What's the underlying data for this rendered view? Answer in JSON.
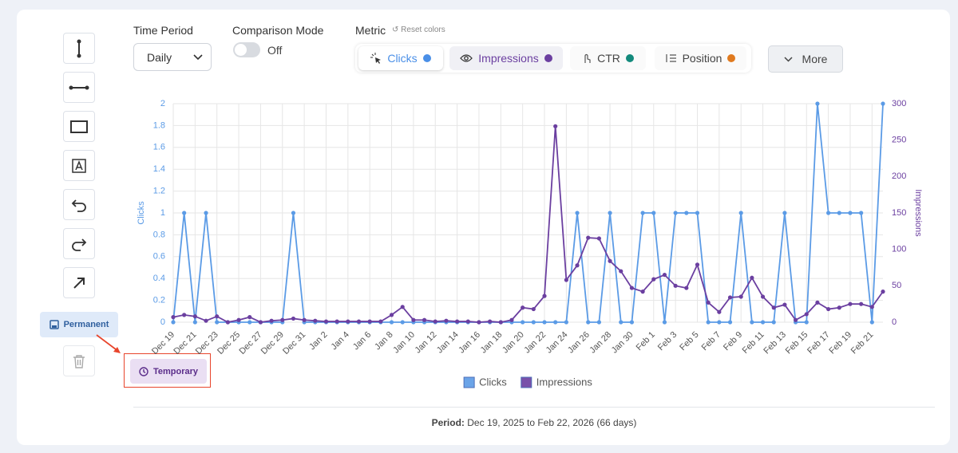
{
  "toolbar": {
    "save_permanent": "Permanent",
    "save_temporary": "Temporary"
  },
  "controls": {
    "time_period": {
      "label": "Time Period",
      "value": "Daily"
    },
    "comparison_mode": {
      "label": "Comparison Mode",
      "state": "Off"
    },
    "metric": {
      "label": "Metric",
      "reset": "Reset colors",
      "options": [
        {
          "name": "Clicks",
          "color": "#4a8fe7"
        },
        {
          "name": "Impressions",
          "color": "#6b3fa0"
        },
        {
          "name": "CTR",
          "color": "#138a7c"
        },
        {
          "name": "Position",
          "color": "#e07a1f"
        }
      ]
    },
    "more": "More"
  },
  "chart_data": {
    "type": "line",
    "categories": [
      "Dec 19",
      null,
      "Dec 21",
      null,
      "Dec 23",
      null,
      "Dec 25",
      null,
      "Dec 27",
      null,
      "Dec 29",
      null,
      "Dec 31",
      null,
      "Jan 2",
      null,
      "Jan 4",
      null,
      "Jan 6",
      null,
      "Jan 8",
      null,
      "Jan 10",
      null,
      "Jan 12",
      null,
      "Jan 14",
      null,
      "Jan 16",
      null,
      "Jan 18",
      null,
      "Jan 20",
      null,
      "Jan 22",
      null,
      "Jan 24",
      null,
      "Jan 26",
      null,
      "Jan 28",
      null,
      "Jan 30",
      null,
      "Feb 1",
      null,
      "Feb 3",
      null,
      "Feb 5",
      null,
      "Feb 7",
      null,
      "Feb 9",
      null,
      "Feb 11",
      null,
      "Feb 13",
      null,
      "Feb 15",
      null,
      "Feb 17",
      null,
      "Feb 19",
      null,
      "Feb 21",
      null
    ],
    "series": [
      {
        "name": "Clicks",
        "color": "#5b9be6",
        "values": [
          0,
          1,
          0,
          1,
          0,
          0,
          0,
          0,
          0,
          0,
          0,
          1,
          0,
          0,
          0,
          0,
          0,
          0,
          0,
          0,
          0,
          0,
          0,
          0,
          0,
          0,
          0,
          0,
          0,
          0,
          0,
          0,
          0,
          0,
          0,
          0,
          0,
          1,
          0,
          0,
          1,
          0,
          0,
          1,
          1,
          0,
          1,
          1,
          1,
          0,
          0,
          0,
          1,
          0,
          0,
          0,
          1,
          0,
          0,
          2,
          1,
          1,
          1,
          1,
          0,
          2
        ]
      },
      {
        "name": "Impressions",
        "color": "#6b3fa0",
        "axis": "y2",
        "values": [
          7,
          10,
          8,
          2,
          8,
          0,
          3,
          7,
          0,
          2,
          3,
          5,
          3,
          2,
          1,
          1,
          1,
          1,
          1,
          1,
          10,
          21,
          3,
          3,
          1,
          2,
          1,
          1,
          0,
          1,
          0,
          3,
          20,
          18,
          36,
          269,
          58,
          78,
          116,
          115,
          84,
          70,
          47,
          42,
          59,
          65,
          50,
          47,
          79,
          27,
          14,
          34,
          35,
          61,
          35,
          20,
          24,
          3,
          11,
          27,
          18,
          20,
          25,
          25,
          21,
          42
        ]
      }
    ],
    "ylabel": "Clicks",
    "y2label": "Impressions",
    "ylim": [
      0,
      2
    ],
    "yticks": [
      0,
      0.2,
      0.4,
      0.6,
      0.8,
      1,
      1.2,
      1.4,
      1.6,
      1.8,
      2
    ],
    "y2lim": [
      0,
      300
    ],
    "y2ticks": [
      0,
      50,
      100,
      150,
      200,
      250,
      300
    ],
    "grid": true,
    "legend": "bottom"
  },
  "footer": {
    "label": "Period:",
    "text": "Dec 19, 2025 to Feb 22, 2026 (66 days)"
  }
}
